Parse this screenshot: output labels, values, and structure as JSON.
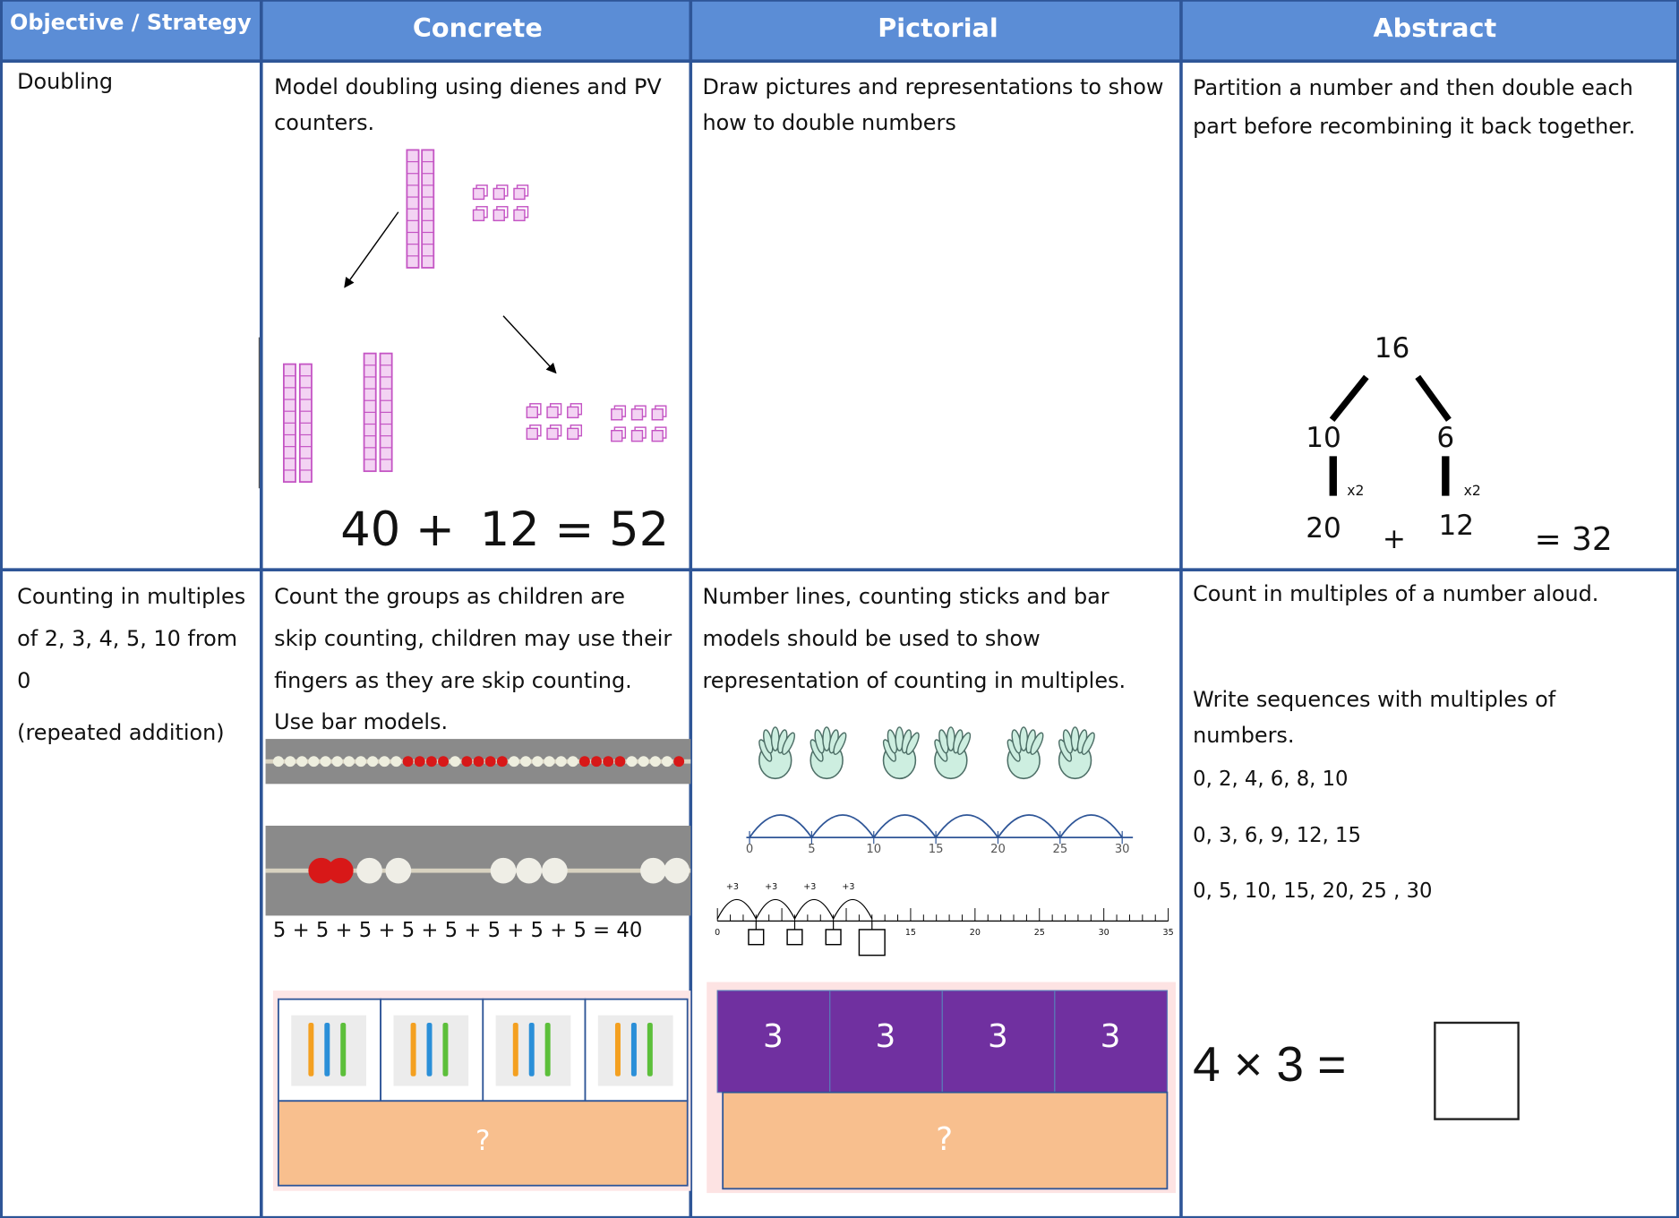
{
  "table": {
    "header": [
      "Objective / Strategy",
      "Concrete",
      "Pictorial",
      "Abstract"
    ],
    "rows": [
      {
        "objective": [
          "Doubling"
        ],
        "concrete": {
          "text": "Model doubling using dienes and PV counters.",
          "equation": [
            "40 +",
            "12 = 52"
          ]
        },
        "pictorial": {
          "text": "Draw pictures and representations to show how to double numbers"
        },
        "abstract": {
          "text": "Partition a number and then double each part before recombining it back together.",
          "tree": {
            "top": "16",
            "left": "10",
            "right": "6",
            "left_factor": "x2",
            "right_factor": "x2",
            "bottom": [
              "20",
              "+",
              "12",
              "= 32"
            ]
          }
        }
      },
      {
        "objective": [
          "Counting in multiples of 2, 3, 4, 5, 10 from 0",
          "(repeated addition)"
        ],
        "concrete": {
          "text": "Count the groups as children are skip counting, children may use their fingers as they are skip counting. Use bar models.",
          "sum": "5 + 5 + 5 + 5 + 5 + 5 + 5 + 5 = 40",
          "bar_total": "?"
        },
        "pictorial": {
          "text": "Number lines, counting sticks and bar models should be used to show representation of counting in multiples.",
          "number_line_labels": [
            0,
            5,
            10,
            15,
            20,
            25,
            30
          ],
          "jump_labels": [
            "+3",
            "+3",
            "+3",
            "+3"
          ],
          "ruler_labels": [
            0,
            15,
            20,
            25,
            30,
            35
          ],
          "bar_parts": [
            "3",
            "3",
            "3",
            "3"
          ],
          "bar_total": "?"
        },
        "abstract": {
          "lines": [
            "Count in multiples of a number aloud.",
            "Write sequences with multiples of numbers."
          ],
          "sequences": [
            "0, 2, 4, 6, 8, 10",
            "0, 3, 6, 9, 12, 15",
            "0, 5, 10, 15, 20, 25 , 30"
          ],
          "equation": "4 × 3 ="
        }
      }
    ]
  }
}
